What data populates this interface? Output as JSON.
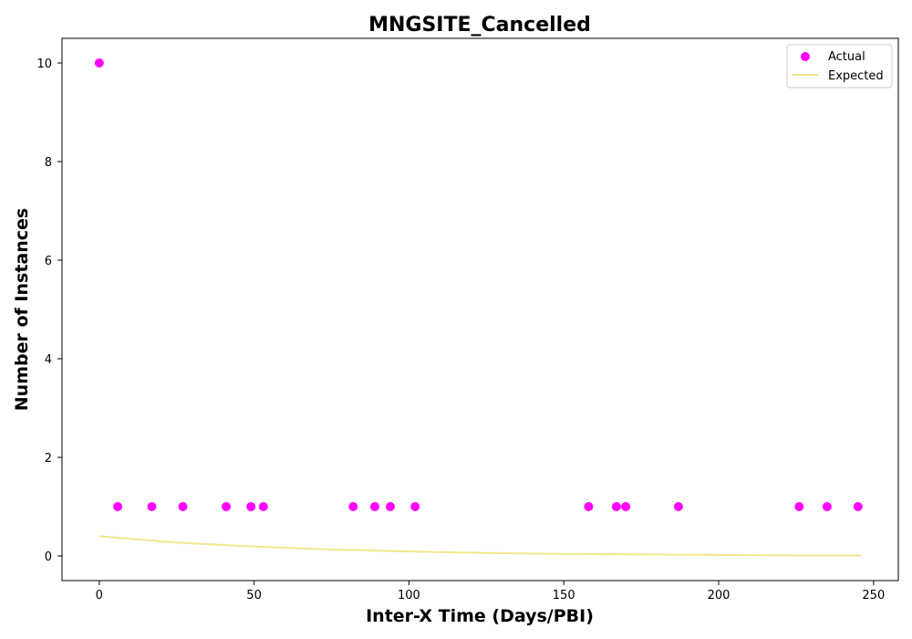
{
  "chart_data": {
    "type": "scatter",
    "title": "MNGSITE_Cancelled",
    "xlabel": "Inter-X Time (Days/PBI)",
    "ylabel": "Number of Instances",
    "xlim": [
      -12,
      258
    ],
    "ylim": [
      -0.5,
      10.5
    ],
    "xticks": [
      0,
      50,
      100,
      150,
      200,
      250
    ],
    "yticks": [
      0,
      2,
      4,
      6,
      8,
      10
    ],
    "grid": false,
    "legend_position": "top-right",
    "series": [
      {
        "name": "Actual",
        "kind": "scatter",
        "color": "#ff00ff",
        "points": [
          {
            "x": 0,
            "y": 10
          },
          {
            "x": 6,
            "y": 1
          },
          {
            "x": 17,
            "y": 1
          },
          {
            "x": 27,
            "y": 1
          },
          {
            "x": 41,
            "y": 1
          },
          {
            "x": 49,
            "y": 1
          },
          {
            "x": 53,
            "y": 1
          },
          {
            "x": 82,
            "y": 1
          },
          {
            "x": 89,
            "y": 1
          },
          {
            "x": 94,
            "y": 1
          },
          {
            "x": 102,
            "y": 1
          },
          {
            "x": 158,
            "y": 1
          },
          {
            "x": 167,
            "y": 1
          },
          {
            "x": 170,
            "y": 1
          },
          {
            "x": 187,
            "y": 1
          },
          {
            "x": 226,
            "y": 1
          },
          {
            "x": 235,
            "y": 1
          },
          {
            "x": 245,
            "y": 1
          }
        ]
      },
      {
        "name": "Expected",
        "kind": "line",
        "color": "#f0e68c",
        "points": [
          {
            "x": 0,
            "y": 0.4
          },
          {
            "x": 25,
            "y": 0.27
          },
          {
            "x": 50,
            "y": 0.19
          },
          {
            "x": 75,
            "y": 0.13
          },
          {
            "x": 100,
            "y": 0.09
          },
          {
            "x": 125,
            "y": 0.06
          },
          {
            "x": 150,
            "y": 0.04
          },
          {
            "x": 175,
            "y": 0.03
          },
          {
            "x": 200,
            "y": 0.02
          },
          {
            "x": 225,
            "y": 0.01
          },
          {
            "x": 246,
            "y": 0.01
          }
        ]
      }
    ]
  }
}
